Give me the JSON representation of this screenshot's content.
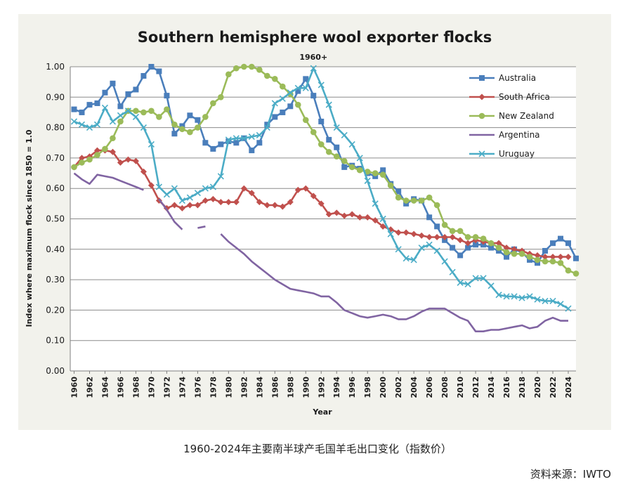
{
  "caption": "1960-2024年主要南半球产毛国羊毛出口变化（指数价）",
  "source": "资料来源：IWTO",
  "chart_data": {
    "type": "line",
    "title": "Southern hemisphere wool exporter flocks",
    "xlabel": "Year",
    "ylabel": "Index where maximum flock since 1850 = 1.0",
    "annotation": {
      "text": "1960+",
      "x": 1991,
      "y": 1.0
    },
    "ylim": [
      0,
      1.0
    ],
    "xlim": [
      1959.5,
      2025
    ],
    "y_ticks": [
      "0.00",
      "0.10",
      "0.20",
      "0.30",
      "0.40",
      "0.50",
      "0.60",
      "0.70",
      "0.80",
      "0.90",
      "1.00"
    ],
    "x_ticks": [
      "1960",
      "1962",
      "1964",
      "1966",
      "1968",
      "1970",
      "1972",
      "1974",
      "1976",
      "1978",
      "1980",
      "1982",
      "1984",
      "1986",
      "1988",
      "1990",
      "1992",
      "1994",
      "1996",
      "1998",
      "2000",
      "2002",
      "2004",
      "2006",
      "2008",
      "2010",
      "2012",
      "2014",
      "2016",
      "2018",
      "2020",
      "2022",
      "2024"
    ],
    "grid": "horizontal",
    "legend_position": "top-right",
    "series": [
      {
        "name": "Australia",
        "color": "#4a7ebb",
        "marker": "square",
        "x": [
          1960,
          1961,
          1962,
          1963,
          1964,
          1965,
          1966,
          1967,
          1968,
          1969,
          1970,
          1971,
          1972,
          1973,
          1974,
          1975,
          1976,
          1977,
          1978,
          1979,
          1980,
          1981,
          1982,
          1983,
          1984,
          1985,
          1986,
          1987,
          1988,
          1989,
          1990,
          1991,
          1992,
          1993,
          1994,
          1995,
          1996,
          1997,
          1998,
          1999,
          2000,
          2001,
          2002,
          2003,
          2004,
          2005,
          2006,
          2007,
          2008,
          2009,
          2010,
          2011,
          2012,
          2013,
          2014,
          2015,
          2016,
          2017,
          2018,
          2019,
          2020,
          2021,
          2022,
          2023,
          2024,
          2025
        ],
        "y": [
          0.86,
          0.85,
          0.875,
          0.88,
          0.915,
          0.945,
          0.87,
          0.91,
          0.925,
          0.97,
          1.0,
          0.985,
          0.905,
          0.78,
          0.805,
          0.84,
          0.825,
          0.75,
          0.73,
          0.745,
          0.755,
          0.75,
          0.765,
          0.725,
          0.75,
          0.81,
          0.835,
          0.85,
          0.87,
          0.92,
          0.96,
          0.905,
          0.82,
          0.76,
          0.735,
          0.67,
          0.675,
          0.665,
          0.65,
          0.64,
          0.66,
          0.615,
          0.59,
          0.55,
          0.565,
          0.56,
          0.505,
          0.475,
          0.43,
          0.405,
          0.38,
          0.405,
          0.415,
          0.415,
          0.405,
          0.395,
          0.375,
          0.4,
          0.39,
          0.365,
          0.355,
          0.395,
          0.42,
          0.435,
          0.42,
          0.37
        ]
      },
      {
        "name": "South Africa",
        "color": "#c0504d",
        "marker": "diamond",
        "x": [
          1960,
          1961,
          1962,
          1963,
          1964,
          1965,
          1966,
          1967,
          1968,
          1969,
          1970,
          1971,
          1972,
          1973,
          1974,
          1975,
          1976,
          1977,
          1978,
          1979,
          1980,
          1981,
          1982,
          1983,
          1984,
          1985,
          1986,
          1987,
          1988,
          1989,
          1990,
          1991,
          1992,
          1993,
          1994,
          1995,
          1996,
          1997,
          1998,
          1999,
          2000,
          2001,
          2002,
          2003,
          2004,
          2005,
          2006,
          2007,
          2008,
          2009,
          2010,
          2011,
          2012,
          2013,
          2014,
          2015,
          2016,
          2017,
          2018,
          2019,
          2020,
          2021,
          2022,
          2023,
          2024
        ],
        "y": [
          0.67,
          0.7,
          0.705,
          0.725,
          0.725,
          0.72,
          0.685,
          0.695,
          0.69,
          0.655,
          0.61,
          0.56,
          0.535,
          0.545,
          0.535,
          0.545,
          0.545,
          0.56,
          0.565,
          0.555,
          0.555,
          0.555,
          0.6,
          0.585,
          0.555,
          0.545,
          0.545,
          0.54,
          0.555,
          0.595,
          0.6,
          0.575,
          0.55,
          0.515,
          0.52,
          0.51,
          0.515,
          0.505,
          0.505,
          0.495,
          0.475,
          0.465,
          0.455,
          0.455,
          0.45,
          0.445,
          0.44,
          0.44,
          0.44,
          0.44,
          0.43,
          0.42,
          0.43,
          0.425,
          0.42,
          0.42,
          0.405,
          0.4,
          0.395,
          0.385,
          0.38,
          0.375,
          0.375,
          0.375,
          0.375
        ]
      },
      {
        "name": "New Zealand",
        "color": "#9bbb59",
        "marker": "circle",
        "x": [
          1960,
          1961,
          1962,
          1963,
          1964,
          1965,
          1966,
          1967,
          1968,
          1969,
          1970,
          1971,
          1972,
          1973,
          1974,
          1975,
          1976,
          1977,
          1978,
          1979,
          1980,
          1981,
          1982,
          1983,
          1984,
          1985,
          1986,
          1987,
          1988,
          1989,
          1990,
          1991,
          1992,
          1993,
          1994,
          1995,
          1996,
          1997,
          1998,
          1999,
          2000,
          2001,
          2002,
          2003,
          2004,
          2005,
          2006,
          2007,
          2008,
          2009,
          2010,
          2011,
          2012,
          2013,
          2014,
          2015,
          2016,
          2017,
          2018,
          2019,
          2020,
          2021,
          2022,
          2023,
          2024,
          2025
        ],
        "y": [
          0.67,
          0.685,
          0.695,
          0.71,
          0.73,
          0.765,
          0.82,
          0.855,
          0.855,
          0.85,
          0.855,
          0.835,
          0.86,
          0.81,
          0.795,
          0.785,
          0.8,
          0.835,
          0.88,
          0.9,
          0.975,
          0.995,
          1.0,
          1.0,
          0.99,
          0.97,
          0.96,
          0.935,
          0.91,
          0.875,
          0.825,
          0.785,
          0.745,
          0.72,
          0.705,
          0.69,
          0.67,
          0.66,
          0.655,
          0.65,
          0.645,
          0.61,
          0.57,
          0.56,
          0.56,
          0.56,
          0.57,
          0.545,
          0.48,
          0.46,
          0.46,
          0.44,
          0.44,
          0.435,
          0.42,
          0.405,
          0.39,
          0.385,
          0.385,
          0.375,
          0.365,
          0.36,
          0.36,
          0.355,
          0.33,
          0.32
        ]
      },
      {
        "name": "Argentina",
        "color": "#8064a2",
        "marker": "none",
        "x": [
          1960,
          1961,
          1962,
          1963,
          1964,
          1965,
          1966,
          1967,
          1968,
          1969,
          1970,
          1971,
          1972,
          1973,
          1974,
          1975,
          1976,
          1977,
          1978,
          1979,
          1980,
          1981,
          1982,
          1983,
          1984,
          1985,
          1986,
          1987,
          1988,
          1989,
          1990,
          1991,
          1992,
          1993,
          1994,
          1995,
          1996,
          1997,
          1998,
          1999,
          2000,
          2001,
          2002,
          2003,
          2004,
          2005,
          2006,
          2007,
          2008,
          2009,
          2010,
          2011,
          2012,
          2013,
          2014,
          2015,
          2016,
          2017,
          2018,
          2019,
          2020,
          2021,
          2022,
          2023,
          2024
        ],
        "y": [
          0.65,
          0.63,
          0.615,
          0.645,
          0.64,
          0.635,
          0.625,
          0.615,
          0.605,
          0.595,
          null,
          0.565,
          0.53,
          0.49,
          0.465,
          null,
          0.47,
          0.475,
          null,
          0.45,
          0.425,
          0.405,
          0.385,
          0.36,
          0.34,
          0.32,
          0.3,
          0.285,
          0.27,
          0.265,
          0.26,
          0.255,
          0.245,
          0.245,
          0.225,
          0.2,
          0.19,
          0.18,
          0.175,
          0.18,
          0.185,
          0.18,
          0.17,
          0.17,
          0.18,
          0.195,
          0.205,
          0.205,
          0.205,
          0.19,
          0.175,
          0.165,
          0.13,
          0.13,
          0.135,
          0.135,
          0.14,
          0.145,
          0.15,
          0.14,
          0.145,
          0.165,
          0.175,
          0.165,
          0.165
        ]
      },
      {
        "name": "Uruguay",
        "color": "#4bacc6",
        "marker": "x",
        "x": [
          1960,
          1961,
          1962,
          1963,
          1964,
          1965,
          1966,
          1967,
          1968,
          1969,
          1970,
          1971,
          1972,
          1973,
          1974,
          1975,
          1976,
          1977,
          1978,
          1979,
          1980,
          1981,
          1982,
          1983,
          1984,
          1985,
          1986,
          1987,
          1988,
          1989,
          1990,
          1991,
          1992,
          1993,
          1994,
          1995,
          1996,
          1997,
          1998,
          1999,
          2000,
          2001,
          2002,
          2003,
          2004,
          2005,
          2006,
          2007,
          2008,
          2009,
          2010,
          2011,
          2012,
          2013,
          2014,
          2015,
          2016,
          2017,
          2018,
          2019,
          2020,
          2021,
          2022,
          2023,
          2024
        ],
        "y": [
          0.82,
          0.81,
          0.8,
          0.81,
          0.865,
          0.82,
          0.84,
          0.855,
          0.835,
          0.8,
          0.745,
          0.605,
          0.58,
          0.6,
          0.56,
          0.57,
          0.585,
          0.6,
          0.605,
          0.64,
          0.76,
          0.765,
          0.765,
          0.77,
          0.775,
          0.8,
          0.88,
          0.895,
          0.915,
          0.93,
          0.93,
          0.995,
          0.94,
          0.875,
          0.8,
          0.775,
          0.745,
          0.7,
          0.625,
          0.55,
          0.5,
          0.45,
          0.4,
          0.37,
          0.365,
          0.405,
          0.415,
          0.395,
          0.36,
          0.325,
          0.29,
          0.285,
          0.305,
          0.305,
          0.28,
          0.25,
          0.245,
          0.245,
          0.24,
          0.245,
          0.235,
          0.23,
          0.23,
          0.22,
          0.205
        ]
      }
    ]
  }
}
